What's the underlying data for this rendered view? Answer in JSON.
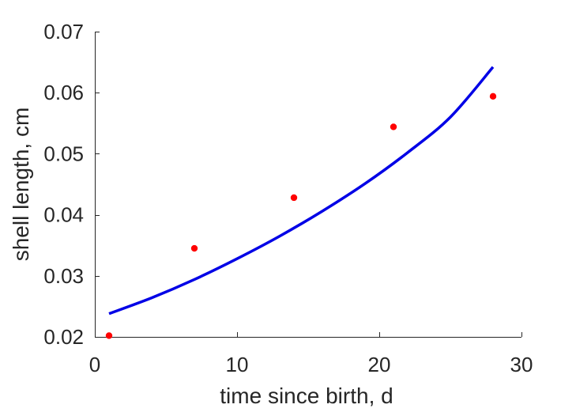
{
  "chart_data": {
    "type": "line",
    "title": "",
    "xlabel": "time since birth, d",
    "ylabel": "shell length, cm",
    "xlim": [
      0,
      30
    ],
    "ylim": [
      0.02,
      0.07
    ],
    "xticks": [
      0,
      10,
      20,
      30
    ],
    "xtick_labels": [
      "0",
      "10",
      "20",
      "30"
    ],
    "yticks": [
      0.02,
      0.03,
      0.04,
      0.05,
      0.06,
      0.07
    ],
    "ytick_labels": [
      "0.02",
      "0.03",
      "0.04",
      "0.05",
      "0.06",
      "0.07"
    ],
    "grid": false,
    "box": false,
    "series": [
      {
        "kind": "scatter",
        "color": "#ff0000",
        "marker": "filled-circle",
        "x": [
          1,
          7,
          14,
          21,
          28
        ],
        "y": [
          0.0202,
          0.0345,
          0.0428,
          0.0544,
          0.0594
        ]
      },
      {
        "kind": "line",
        "color": "#0000e6",
        "x": [
          1,
          4,
          7,
          10,
          13,
          16,
          19,
          22,
          25,
          28
        ],
        "y": [
          0.0238,
          0.0264,
          0.0294,
          0.0328,
          0.0365,
          0.0406,
          0.0451,
          0.0502,
          0.056,
          0.0642
        ]
      }
    ]
  }
}
